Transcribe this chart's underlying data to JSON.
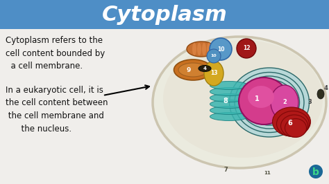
{
  "title": "Cytoplasm",
  "title_fontsize": 22,
  "title_color": "white",
  "title_bg_color": "#4e8ec6",
  "bg_color": "#dce8f0",
  "text1": "Cytoplasm refers to the\ncell content bounded by\n  a cell membrane.",
  "text2": "In a eukaryotic cell, it is\nthe cell content between\n the cell membrane and\n      the nucleus.",
  "text_color": "#111111",
  "text_fontsize": 8.5,
  "cell_bg": "#edeae0",
  "cell_edge": "#c8bfaa",
  "nucleus_color": "#d43c8c",
  "nucleus_inner": "#e870b8",
  "teal_color": "#3ab5b0",
  "orange_mito": "#c86820",
  "yellow_color": "#d4a820",
  "blue_vac": "#5898c8",
  "red_vac": "#b01818",
  "red_lyso": "#a81c1c",
  "orange_bean": "#c07030",
  "dark_centriole": "#302818",
  "logo_color": "#3db87a",
  "logo_bg": "#1a6896"
}
